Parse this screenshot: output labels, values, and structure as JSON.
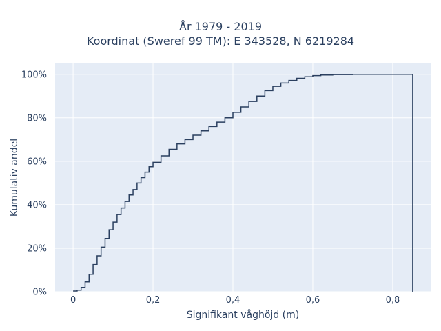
{
  "chart_data": {
    "type": "line",
    "title_line1": "År 1979 - 2019",
    "title_line2": "Koordinat (Sweref 99 TM): E 343528, N 6219284",
    "xlabel": "Signifikant våghöjd (m)",
    "ylabel": "Kumulativ andel",
    "xlim": [
      -0.045,
      0.895
    ],
    "ylim": [
      0,
      1.05
    ],
    "x_ticks": [
      0,
      0.2,
      0.4,
      0.6,
      0.8
    ],
    "x_tick_labels": [
      "0",
      "0,2",
      "0,4",
      "0,6",
      "0,8"
    ],
    "y_ticks": [
      0,
      0.2,
      0.4,
      0.6,
      0.8,
      1.0
    ],
    "y_tick_labels": [
      "0%",
      "20%",
      "40%",
      "60%",
      "80%",
      "100%"
    ],
    "grid": true,
    "legend": "none",
    "step": "post",
    "line_color": "#2a3f5f",
    "background_color": "#e5ecf6",
    "series": [
      {
        "x": [
          0,
          0.01,
          0.02,
          0.03,
          0.04,
          0.05,
          0.06,
          0.07,
          0.08,
          0.09,
          0.1,
          0.11,
          0.12,
          0.13,
          0.14,
          0.15,
          0.16,
          0.17,
          0.18,
          0.19,
          0.2,
          0.22,
          0.24,
          0.26,
          0.28,
          0.3,
          0.32,
          0.34,
          0.36,
          0.38,
          0.4,
          0.42,
          0.44,
          0.46,
          0.48,
          0.5,
          0.52,
          0.54,
          0.56,
          0.58,
          0.6,
          0.62,
          0.65,
          0.7,
          0.75,
          0.85,
          0.85
        ],
        "y": [
          0.003,
          0.007,
          0.02,
          0.045,
          0.08,
          0.125,
          0.165,
          0.205,
          0.245,
          0.285,
          0.32,
          0.355,
          0.385,
          0.415,
          0.445,
          0.47,
          0.5,
          0.525,
          0.55,
          0.575,
          0.595,
          0.625,
          0.655,
          0.68,
          0.7,
          0.72,
          0.74,
          0.76,
          0.78,
          0.8,
          0.825,
          0.85,
          0.875,
          0.9,
          0.925,
          0.945,
          0.96,
          0.972,
          0.982,
          0.989,
          0.994,
          0.997,
          0.999,
          1.0,
          1.0,
          1.0,
          0.0
        ]
      }
    ]
  }
}
